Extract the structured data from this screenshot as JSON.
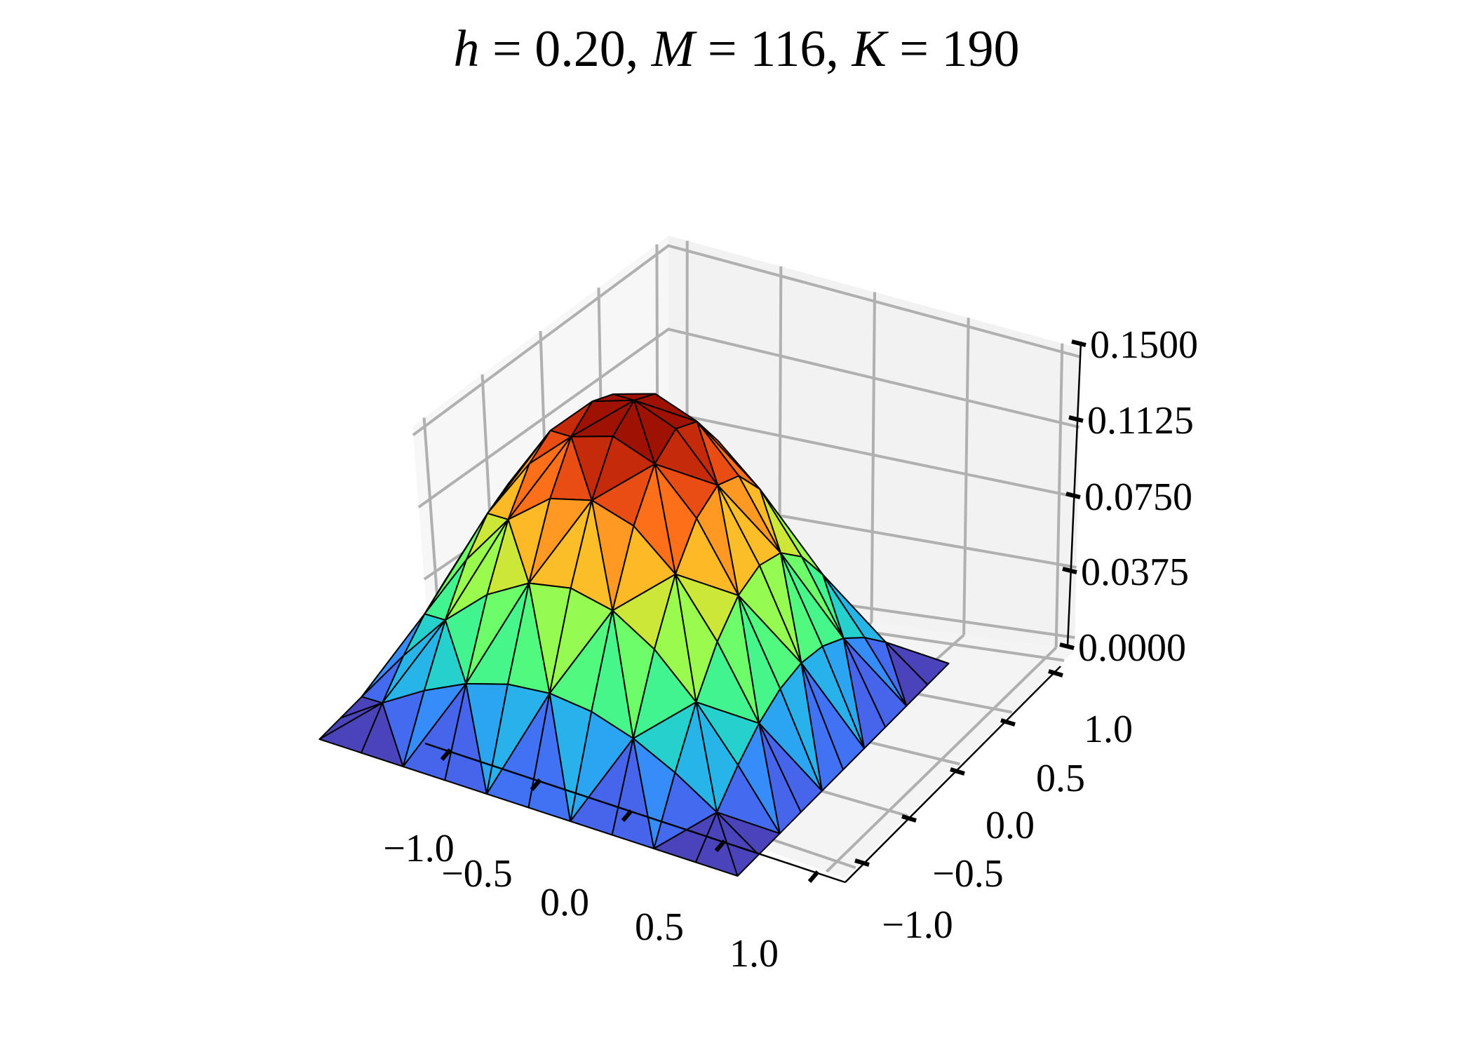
{
  "chart_data": {
    "type": "surface3d",
    "title": "h = 0.20, M = 116, K = 190",
    "title_parts": {
      "h": "0.20",
      "M": "116",
      "K": "190"
    },
    "colormap": "turbo",
    "mesh": "triangulated",
    "xlabel": "",
    "ylabel": "",
    "zlabel": "",
    "xlim": [
      -1.0,
      1.0
    ],
    "ylim": [
      -1.0,
      1.0
    ],
    "zlim": [
      0.0,
      0.15
    ],
    "x_ticks": [
      "−1.0",
      "−0.5",
      "0.0",
      "0.5",
      "1.0"
    ],
    "y_ticks": [
      "−1.0",
      "−0.5",
      "0.0",
      "0.5",
      "1.0"
    ],
    "z_ticks": [
      "0.0000",
      "0.0375",
      "0.0750",
      "0.1125",
      "0.1500"
    ],
    "z_max_approx": 0.148,
    "grid": true,
    "surface_description": "Smooth single-peaked bump vanishing on the boundary of [-1,1]^2, maximum near the center",
    "grid_nodes_per_axis": 11
  },
  "colors": {
    "pane_left": "#f7f7f7",
    "pane_back": "#f2f2f2",
    "pane_floor": "#f4f4f4",
    "grid": "#b0b0b0",
    "axis": "#000000",
    "edge": "#000000"
  }
}
